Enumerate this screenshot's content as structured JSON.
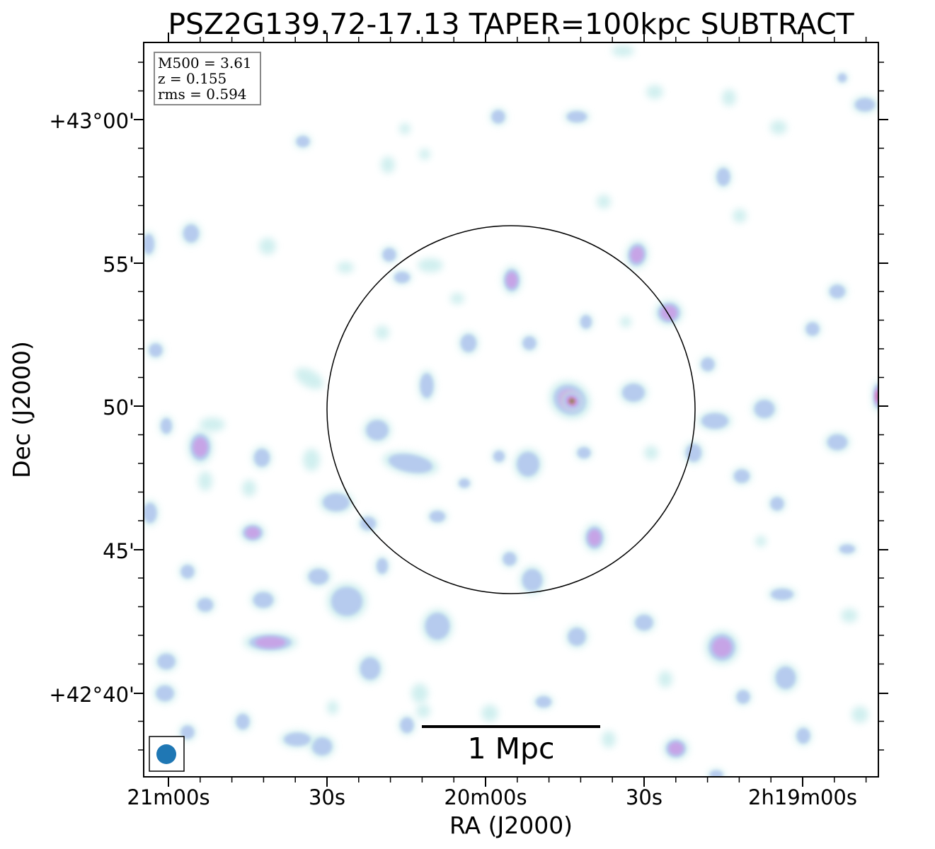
{
  "chart_data": {
    "type": "heatmap",
    "title": "PSZ2G139.72-17.13 TAPER=100kpc SUBTRACT",
    "xlabel": "RA (J2000)",
    "ylabel": "Dec (J2000)",
    "x_ticks": [
      "21m00s",
      "30s",
      "20m00s",
      "30s",
      "2h19m00s"
    ],
    "y_ticks": [
      "+43°00'",
      "55'",
      "50'",
      "45'",
      "+42°40'"
    ],
    "info_box": {
      "m500": "M500 = 3.61",
      "z": "z = 0.155",
      "rms": "rms = 0.594"
    },
    "scale_bar_label": "1 Mpc",
    "colormap": [
      "#c8ecec",
      "#b4c8ee",
      "#c8a0e6",
      "#d878b4",
      "#6c8a2a"
    ],
    "brightest_source_color": "#6c8a2a"
  }
}
